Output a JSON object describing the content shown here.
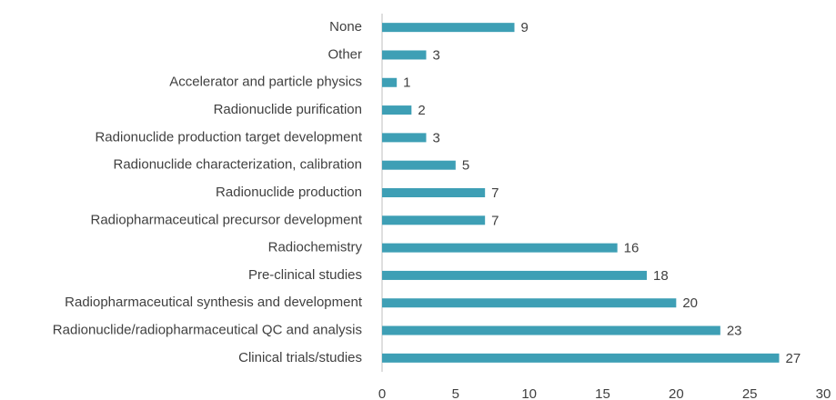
{
  "chart_data": {
    "type": "bar",
    "orientation": "horizontal",
    "categories": [
      "None",
      "Other",
      "Accelerator and particle physics",
      "Radionuclide purification",
      "Radionuclide production target development",
      "Radionuclide characterization, calibration",
      "Radionuclide production",
      "Radiopharmaceutical precursor development",
      "Radiochemistry",
      "Pre-clinical studies",
      "Radiopharmaceutical synthesis and development",
      "Radionuclide/radiopharmaceutical QC and analysis",
      "Clinical trials/studies"
    ],
    "values": [
      9,
      3,
      1,
      2,
      3,
      5,
      7,
      7,
      16,
      18,
      20,
      23,
      27
    ],
    "color": "#3e9fb5",
    "xlim": [
      0,
      30
    ],
    "xticks": [
      0,
      5,
      10,
      15,
      20,
      25,
      30
    ],
    "grid": false
  }
}
